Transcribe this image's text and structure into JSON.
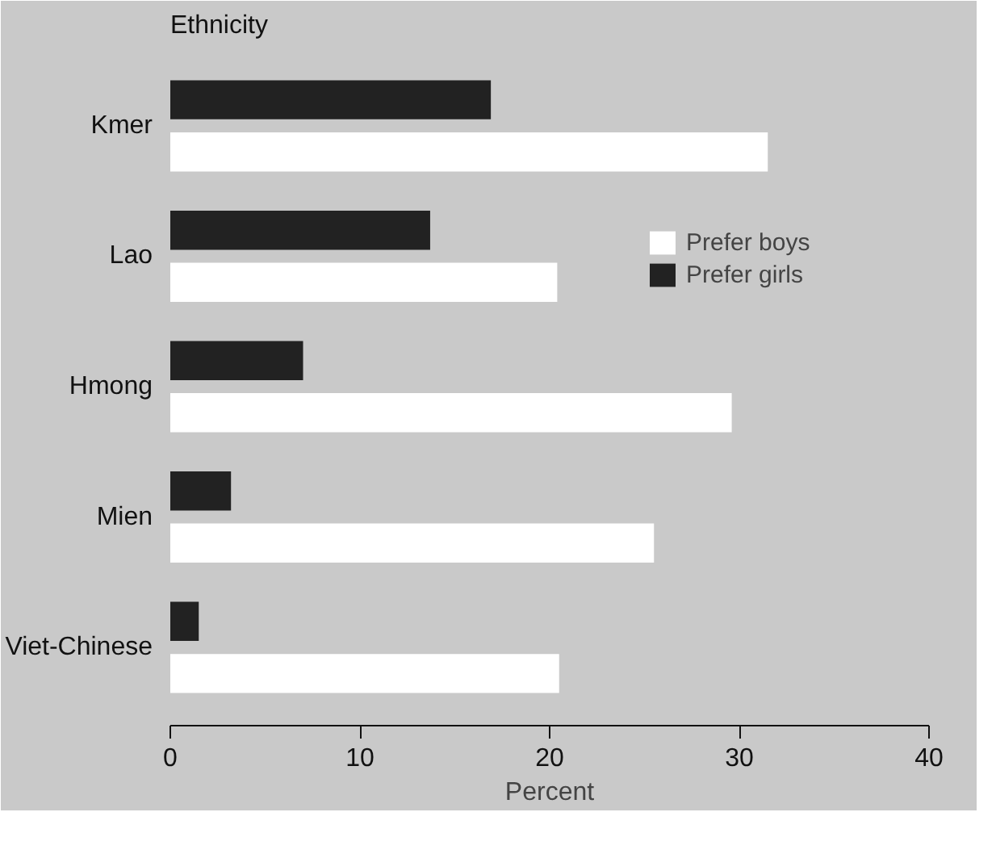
{
  "chart_data": {
    "type": "bar",
    "orientation": "horizontal",
    "ylabel": "Ethnicity",
    "xlabel": "Percent",
    "categories": [
      "Kmer",
      "Lao",
      "Hmong",
      "Mien",
      "Viet-Chinese"
    ],
    "series": [
      {
        "name": "Prefer boys",
        "color": "#ffffff",
        "values": [
          31.5,
          20.4,
          29.6,
          25.5,
          20.5
        ]
      },
      {
        "name": "Prefer girls",
        "color": "#222222",
        "values": [
          16.9,
          13.7,
          7.0,
          3.2,
          1.5
        ]
      }
    ],
    "xlim": [
      0,
      40
    ],
    "xticks": [
      0,
      10,
      20,
      30,
      40
    ],
    "grid": false,
    "legend": "top right"
  }
}
